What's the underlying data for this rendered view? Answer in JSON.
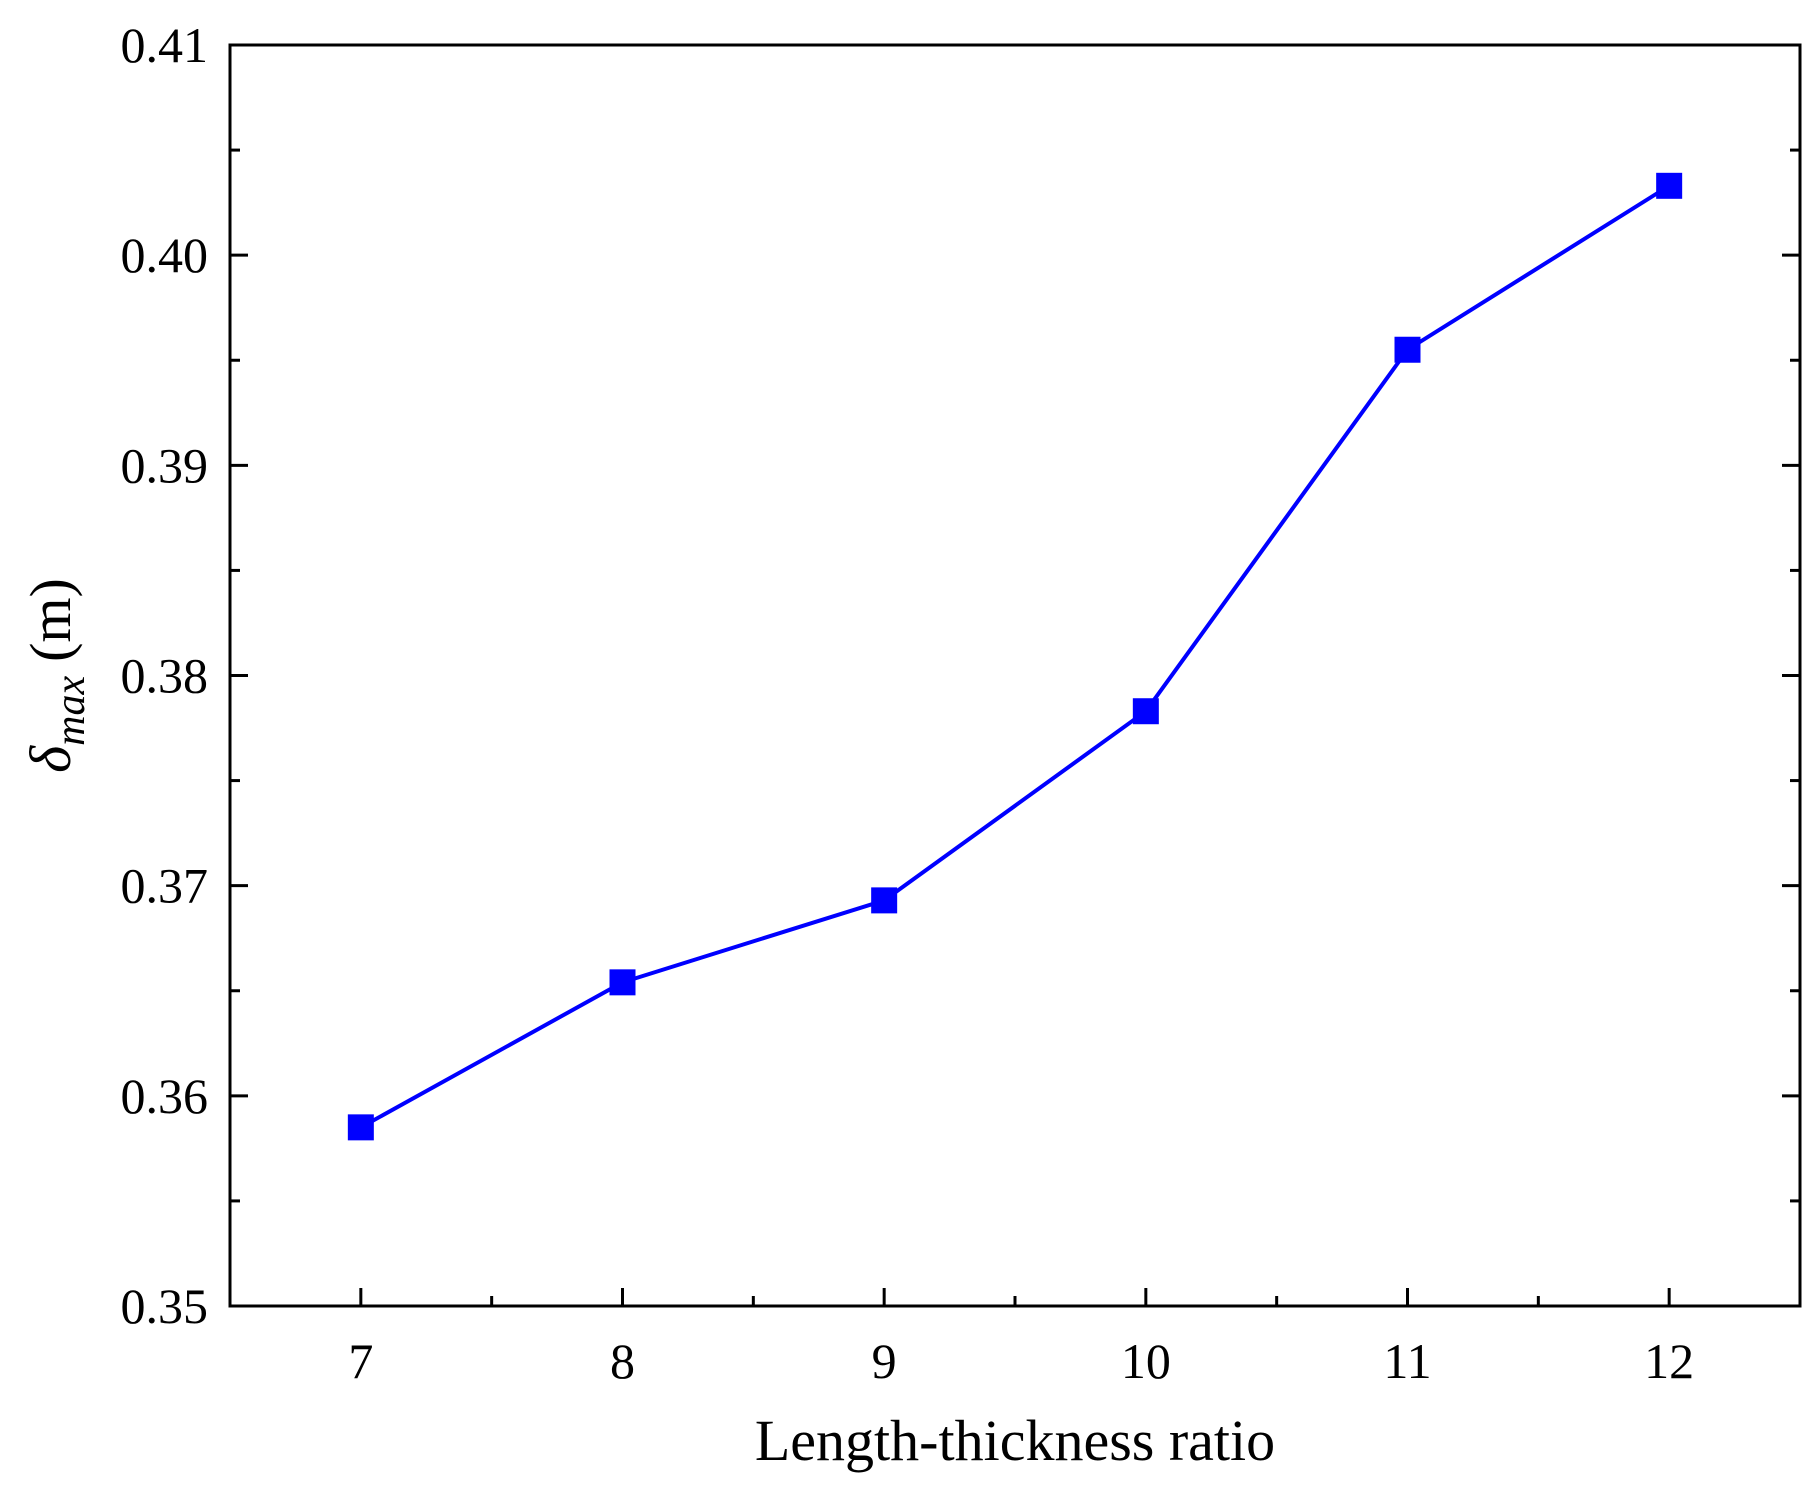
{
  "chart_data": {
    "type": "line",
    "title": "",
    "xlabel": "Length-thickness ratio",
    "ylabel": {
      "symbol": "δ",
      "subscript": "max",
      "unit": "(m)"
    },
    "x": [
      7,
      8,
      9,
      10,
      11,
      12
    ],
    "series": [
      {
        "values": [
          0.3585,
          0.3654,
          0.3693,
          0.3783,
          0.3955,
          0.4033
        ],
        "color": "#0000ff",
        "marker": "square"
      }
    ],
    "xlim": [
      6.5,
      12.5
    ],
    "ylim": [
      0.35,
      0.41
    ],
    "x_ticks": [
      "7",
      "8",
      "9",
      "10",
      "11",
      "12"
    ],
    "y_ticks": [
      "0.35",
      "0.36",
      "0.37",
      "0.38",
      "0.39",
      "0.40",
      "0.41"
    ],
    "grid": false,
    "legend": "none"
  }
}
